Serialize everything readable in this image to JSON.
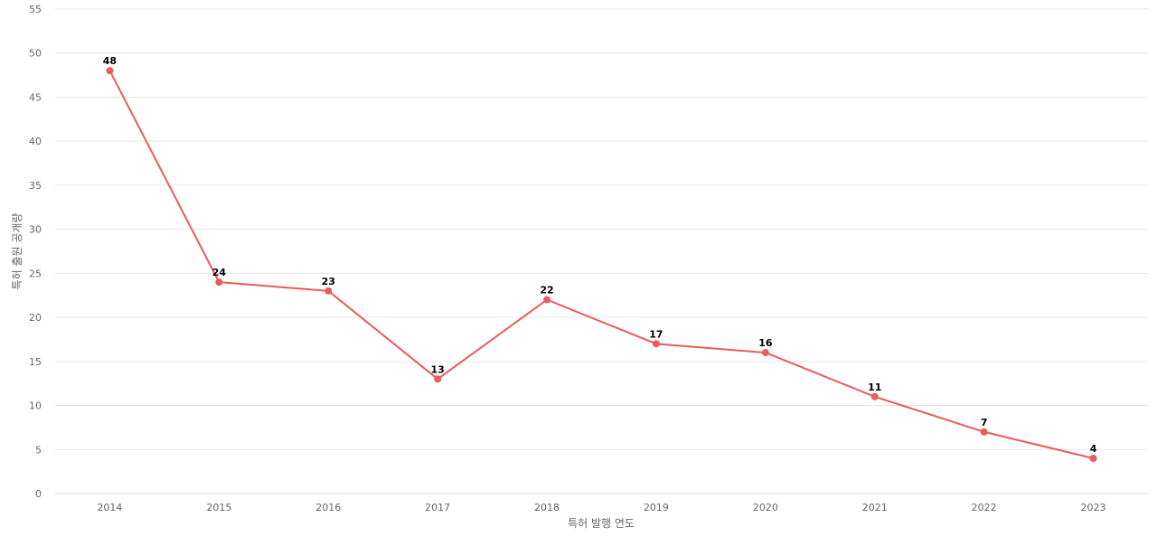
{
  "chart_data": {
    "type": "line",
    "title": "",
    "xlabel": "특허 발행 연도",
    "ylabel": "특허 출원 공개량",
    "categories": [
      "2014",
      "2015",
      "2016",
      "2017",
      "2018",
      "2019",
      "2020",
      "2021",
      "2022",
      "2023"
    ],
    "series": [
      {
        "values": [
          48,
          24,
          23,
          13,
          22,
          17,
          16,
          11,
          7,
          4
        ]
      }
    ],
    "ylim": [
      0,
      55
    ],
    "yticks": [
      0,
      5,
      10,
      15,
      20,
      25,
      30,
      35,
      40,
      45,
      50,
      55
    ],
    "grid": true,
    "legend": "none",
    "line_color": "#ec5b5b"
  }
}
